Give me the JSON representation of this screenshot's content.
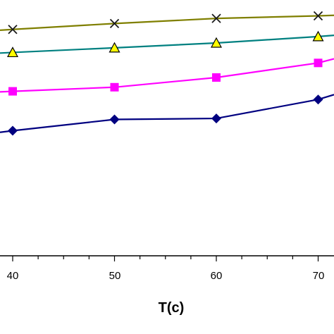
{
  "chart_data": {
    "type": "line",
    "xlabel": "T(c)",
    "ylabel": "",
    "x_tick_labels": [
      "40",
      "50",
      "60",
      "70"
    ],
    "x_visible_range": [
      38.6,
      71.6
    ],
    "x_minor_step": 2.5,
    "y_visible_range": [
      0,
      1
    ],
    "grid": false,
    "x": [
      40,
      50,
      60,
      70
    ],
    "series": [
      {
        "marker": "cross",
        "color": "#7f7f00",
        "marker_color": "#1a1a1a",
        "values": [
          0.885,
          0.908,
          0.928,
          0.938
        ],
        "edge_value": 0.94
      },
      {
        "marker": "triangle",
        "color": "#008080",
        "marker_color": "#ffff00",
        "values": [
          0.795,
          0.813,
          0.832,
          0.857
        ],
        "edge_value": 0.862
      },
      {
        "marker": "square",
        "color": "#ff00ff",
        "marker_color": "#ff00ff",
        "values": [
          0.643,
          0.659,
          0.697,
          0.754
        ],
        "edge_value": 0.77
      },
      {
        "marker": "diamond",
        "color": "#000080",
        "marker_color": "#000080",
        "values": [
          0.489,
          0.533,
          0.537,
          0.611
        ],
        "edge_value": 0.63
      }
    ]
  }
}
